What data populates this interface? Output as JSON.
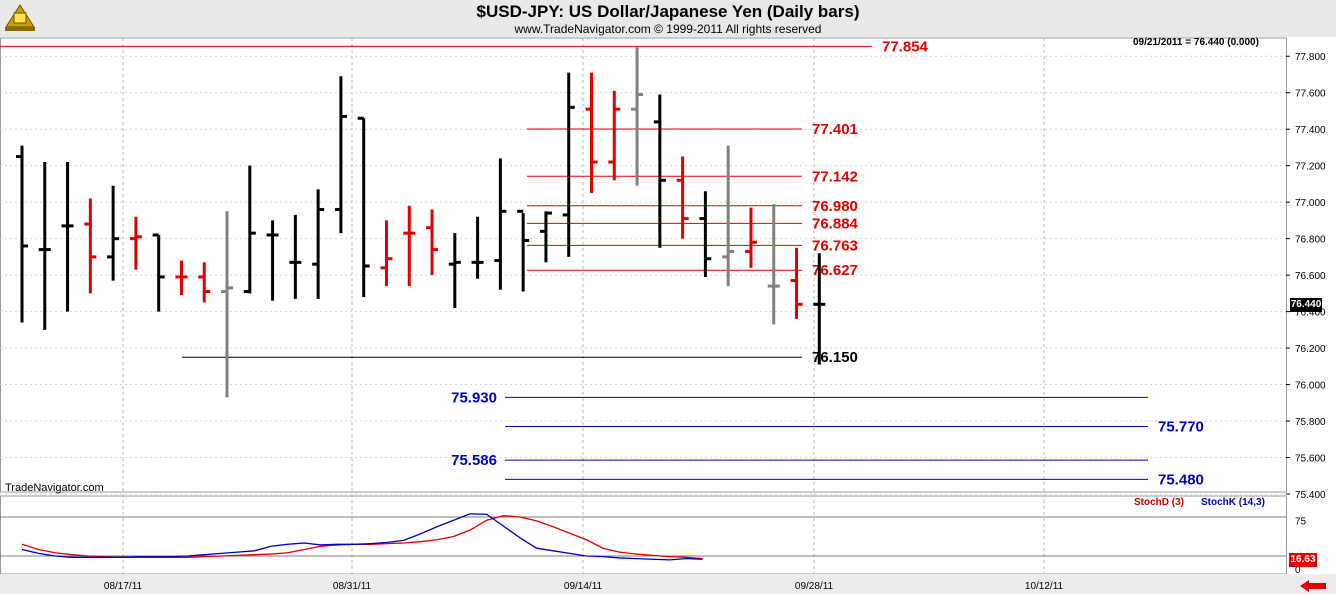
{
  "header": {
    "title": "$USD-JPY:  US Dollar/Japanese Yen  (Daily bars)",
    "copyright": "www.TradeNavigator.com © 1999-2011 All rights reserved"
  },
  "watermark": "TradeNavigator.com",
  "date_readout": "09/21/2011 = 76.440 (0.000)",
  "last_price_label": "76.440",
  "stoch_value_label": "16.63",
  "indicator_labels": {
    "stoch_d": "StochD (3)",
    "stoch_k": "StochK (14,3)"
  },
  "colors": {
    "up": "#000000",
    "down": "#e00000",
    "neutral": "#808080",
    "level_red": "#e00000",
    "level_blue": "#0000c0",
    "level_black": "#000000"
  },
  "chart_data": {
    "type": "ohlc",
    "title": "$USD-JPY:  US Dollar/Japanese Yen  (Daily bars)",
    "ylim": [
      75.4,
      77.9
    ],
    "y_ticks": [
      75.4,
      75.6,
      75.8,
      76.0,
      76.2,
      76.4,
      76.6,
      76.8,
      77.0,
      77.2,
      77.4,
      77.6,
      77.8
    ],
    "x_ticks": [
      "08/17/11",
      "08/31/11",
      "09/14/11",
      "09/28/11",
      "10/12/11"
    ],
    "grid": true,
    "bars": [
      {
        "o": 77.25,
        "h": 77.31,
        "l": 76.34,
        "c": 76.76,
        "color": "black"
      },
      {
        "o": 76.74,
        "h": 77.22,
        "l": 76.3,
        "c": 76.74,
        "color": "black"
      },
      {
        "o": 76.87,
        "h": 77.22,
        "l": 76.4,
        "c": 76.87,
        "color": "black"
      },
      {
        "o": 76.88,
        "h": 77.02,
        "l": 76.5,
        "c": 76.7,
        "color": "red"
      },
      {
        "o": 76.7,
        "h": 77.09,
        "l": 76.57,
        "c": 76.8,
        "color": "black"
      },
      {
        "o": 76.8,
        "h": 76.92,
        "l": 76.63,
        "c": 76.81,
        "color": "red"
      },
      {
        "o": 76.82,
        "h": 76.82,
        "l": 76.4,
        "c": 76.59,
        "color": "black"
      },
      {
        "o": 76.59,
        "h": 76.68,
        "l": 76.49,
        "c": 76.59,
        "color": "red"
      },
      {
        "o": 76.59,
        "h": 76.67,
        "l": 76.45,
        "c": 76.51,
        "color": "red"
      },
      {
        "o": 76.51,
        "h": 76.95,
        "l": 75.93,
        "c": 76.53,
        "color": "gray"
      },
      {
        "o": 76.51,
        "h": 77.2,
        "l": 76.5,
        "c": 76.83,
        "color": "black"
      },
      {
        "o": 76.82,
        "h": 76.9,
        "l": 76.46,
        "c": 76.82,
        "color": "black"
      },
      {
        "o": 76.67,
        "h": 76.93,
        "l": 76.47,
        "c": 76.67,
        "color": "black"
      },
      {
        "o": 76.66,
        "h": 77.07,
        "l": 76.47,
        "c": 76.96,
        "color": "black"
      },
      {
        "o": 76.96,
        "h": 77.69,
        "l": 76.83,
        "c": 77.47,
        "color": "black"
      },
      {
        "o": 77.46,
        "h": 77.46,
        "l": 76.48,
        "c": 76.65,
        "color": "black"
      },
      {
        "o": 76.64,
        "h": 76.9,
        "l": 76.54,
        "c": 76.69,
        "color": "red"
      },
      {
        "o": 76.83,
        "h": 76.98,
        "l": 76.54,
        "c": 76.83,
        "color": "red"
      },
      {
        "o": 76.86,
        "h": 76.96,
        "l": 76.6,
        "c": 76.74,
        "color": "red"
      },
      {
        "o": 76.66,
        "h": 76.83,
        "l": 76.42,
        "c": 76.67,
        "color": "black"
      },
      {
        "o": 76.67,
        "h": 76.92,
        "l": 76.58,
        "c": 76.67,
        "color": "black"
      },
      {
        "o": 76.68,
        "h": 77.24,
        "l": 76.52,
        "c": 76.95,
        "color": "black"
      },
      {
        "o": 76.95,
        "h": 76.94,
        "l": 76.51,
        "c": 76.79,
        "color": "black"
      },
      {
        "o": 76.84,
        "h": 76.95,
        "l": 76.67,
        "c": 76.94,
        "color": "black"
      },
      {
        "o": 76.93,
        "h": 77.71,
        "l": 76.7,
        "c": 77.52,
        "color": "black"
      },
      {
        "o": 77.51,
        "h": 77.71,
        "l": 77.05,
        "c": 77.22,
        "color": "red"
      },
      {
        "o": 77.22,
        "h": 77.61,
        "l": 77.12,
        "c": 77.51,
        "color": "red"
      },
      {
        "o": 77.51,
        "h": 77.85,
        "l": 77.09,
        "c": 77.59,
        "color": "gray"
      },
      {
        "o": 77.44,
        "h": 77.59,
        "l": 76.75,
        "c": 77.12,
        "color": "black"
      },
      {
        "o": 77.12,
        "h": 77.25,
        "l": 76.8,
        "c": 76.91,
        "color": "red"
      },
      {
        "o": 76.91,
        "h": 77.06,
        "l": 76.59,
        "c": 76.69,
        "color": "black"
      },
      {
        "o": 76.7,
        "h": 77.31,
        "l": 76.54,
        "c": 76.73,
        "color": "gray"
      },
      {
        "o": 76.73,
        "h": 76.97,
        "l": 76.64,
        "c": 76.78,
        "color": "red"
      },
      {
        "o": 76.54,
        "h": 76.99,
        "l": 76.33,
        "c": 76.54,
        "color": "gray"
      },
      {
        "o": 76.57,
        "h": 76.75,
        "l": 76.36,
        "c": 76.44,
        "color": "red"
      },
      {
        "o": 76.44,
        "h": 76.72,
        "l": 76.11,
        "c": 76.44,
        "color": "black"
      }
    ],
    "levels": [
      {
        "value": 77.854,
        "label": "77.854",
        "color": "red"
      },
      {
        "value": 77.401,
        "label": "77.401",
        "color": "red"
      },
      {
        "value": 77.142,
        "label": "77.142",
        "color": "red"
      },
      {
        "value": 76.98,
        "label": "76.980",
        "color": "red"
      },
      {
        "value": 76.884,
        "label": "76.884",
        "color": "red"
      },
      {
        "value": 76.763,
        "label": "76.763",
        "color": "red"
      },
      {
        "value": 76.627,
        "label": "76.627",
        "color": "red"
      },
      {
        "value": 76.15,
        "label": "76.150",
        "color": "black"
      },
      {
        "value": 75.93,
        "label": "75.930",
        "color": "blue"
      },
      {
        "value": 75.77,
        "label": "75.770",
        "color": "blue"
      },
      {
        "value": 75.586,
        "label": "75.586",
        "color": "blue"
      },
      {
        "value": 75.48,
        "label": "75.480",
        "color": "blue"
      }
    ],
    "stochastic": {
      "ylim": [
        0,
        100
      ],
      "y_ticks": [
        0,
        75
      ],
      "reference_lines": [
        20,
        80
      ],
      "stoch_d": [
        38,
        30,
        25,
        22,
        20,
        19,
        18,
        18,
        18,
        18,
        18,
        19,
        20,
        21,
        22,
        23,
        25,
        30,
        35,
        37,
        38,
        38,
        39,
        40,
        42,
        45,
        50,
        60,
        75,
        82,
        80,
        74,
        65,
        55,
        45,
        32,
        26,
        23,
        21,
        19,
        18,
        16
      ],
      "stoch_k": [
        30,
        24,
        20,
        18,
        18,
        18,
        18,
        19,
        19,
        19,
        20,
        22,
        24,
        26,
        28,
        35,
        38,
        40,
        37,
        38,
        38,
        39,
        41,
        44,
        54,
        65,
        75,
        85,
        84,
        66,
        48,
        32,
        28,
        24,
        20,
        19,
        17,
        16,
        15,
        14,
        16,
        15
      ]
    }
  }
}
